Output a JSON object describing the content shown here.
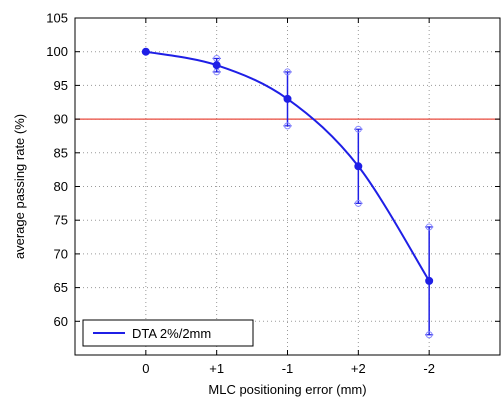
{
  "chart_data": {
    "type": "line",
    "categories": [
      "0",
      "+1",
      "-1",
      "+2",
      "-2"
    ],
    "xlabel": "MLC positioning error (mm)",
    "ylabel": "average passing rate (%)",
    "ylim": [
      55,
      105
    ],
    "yticks": [
      60,
      65,
      70,
      75,
      80,
      85,
      90,
      95,
      100,
      105
    ],
    "grid": true,
    "legend_position": "bottom-left",
    "reference_line": {
      "y": 90,
      "color": "#e8483c"
    },
    "series": [
      {
        "name": "DTA 2%/2mm",
        "color": "#1f1fe6",
        "values": [
          100,
          98,
          93,
          83,
          66
        ],
        "error_low": [
          100,
          97,
          89,
          77.5,
          58
        ],
        "error_high": [
          100,
          99,
          97,
          88.5,
          74
        ]
      }
    ]
  }
}
